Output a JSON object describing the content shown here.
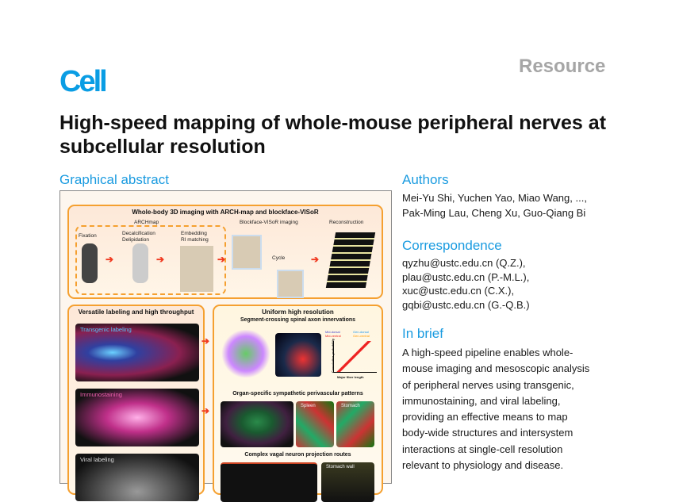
{
  "journal": "Cell",
  "article_type": "Resource",
  "title": "High-speed mapping of whole-mouse peripheral nerves at subcellular resolution",
  "graphical_abstract": {
    "heading": "Graphical abstract",
    "top_panel": {
      "title": "Whole-body 3D imaging with ARCH-map and blockface-VISoR",
      "archmap": "ARCHmap",
      "steps": [
        "Fixation",
        "Decalcification",
        "Delipidation",
        "Embedding",
        "RI matching",
        "Blockface-VISoR imaging",
        "Cycle",
        "Reconstruction"
      ]
    },
    "left_panel": {
      "title": "Versatile labeling and high throughput",
      "images": [
        "Transgenic labeling",
        "Immunostaining",
        "Viral labeling"
      ]
    },
    "right_panel": {
      "title": "Uniform high resolution",
      "sub": [
        "Segment-crossing spinal axon innervations",
        "Organ-specific sympathetic perivascular patterns",
        "Complex vagal neuron projection routes"
      ],
      "image_labels": [
        "Spleen",
        "Stomach",
        "Stomach wall"
      ],
      "plot": {
        "ylabel": "Cumulative probability",
        "xlabel": "Major fiber length",
        "legend": [
          "Mid-dorsal",
          "Mid-ventral",
          "Gen-dorsal",
          "Gen-ventral"
        ]
      }
    }
  },
  "authors": {
    "heading": "Authors",
    "lines": [
      "Mei-Yu Shi, Yuchen Yao, Miao Wang, ...,",
      "Pak-Ming Lau, Cheng Xu, Guo-Qiang Bi"
    ]
  },
  "correspondence": {
    "heading": "Correspondence",
    "lines": [
      "qyzhu@ustc.edu.cn (Q.Z.),",
      "plau@ustc.edu.cn (P.-M.L.),",
      "xuc@ustc.edu.cn (C.X.),",
      "gqbi@ustc.edu.cn (G.-Q.B.)"
    ]
  },
  "in_brief": {
    "heading": "In brief",
    "lines": [
      "A high-speed pipeline enables whole-",
      "mouse imaging and mesoscopic analysis",
      "of peripheral nerves using transgenic,",
      "immunostaining, and viral labeling,",
      "providing an effective means to map",
      "body-wide structures and intersystem",
      "interactions at single-cell resolution",
      "relevant to physiology and disease."
    ]
  },
  "colors": {
    "accent": "#1a9be0",
    "panel_border": "#f5a030",
    "arrow": "#f03a20"
  }
}
